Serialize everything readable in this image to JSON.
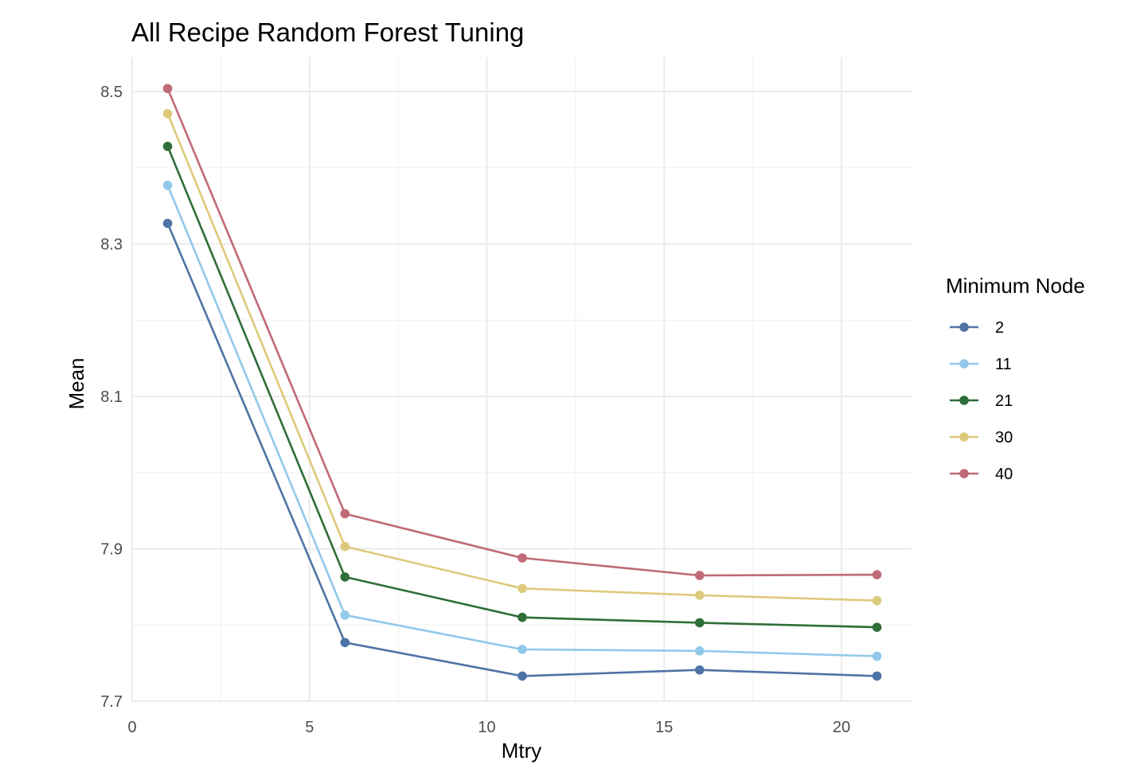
{
  "chart_data": {
    "type": "line",
    "title": "All Recipe Random Forest Tuning",
    "xlabel": "Mtry",
    "ylabel": "Mean",
    "xlim": [
      0,
      22
    ],
    "ylim": [
      7.7,
      8.52
    ],
    "x_ticks": [
      0,
      5,
      10,
      15,
      20
    ],
    "x_tick_labels": [
      "0",
      "5",
      "10",
      "15",
      "20"
    ],
    "y_ticks": [
      7.7,
      7.9,
      8.1,
      8.3,
      8.5
    ],
    "y_tick_labels": [
      "7.7",
      "7.9",
      "8.1",
      "8.3",
      "8.5"
    ],
    "grid": true,
    "legend": {
      "title": "Minimum Node",
      "position": "right"
    },
    "x": [
      1,
      6,
      11,
      16,
      21
    ],
    "series": [
      {
        "name": "2",
        "color": "#4e74a6",
        "values": [
          8.327,
          7.777,
          7.733,
          7.741,
          7.733
        ]
      },
      {
        "name": "11",
        "color": "#92c8ea",
        "values": [
          8.377,
          7.813,
          7.768,
          7.766,
          7.759
        ]
      },
      {
        "name": "21",
        "color": "#2f6e38",
        "values": [
          8.428,
          7.863,
          7.81,
          7.803,
          7.797
        ]
      },
      {
        "name": "30",
        "color": "#ddca7c",
        "values": [
          8.471,
          7.903,
          7.848,
          7.839,
          7.832
        ]
      },
      {
        "name": "40",
        "color": "#c06a77",
        "values": [
          8.504,
          7.946,
          7.888,
          7.865,
          7.866
        ]
      }
    ]
  }
}
